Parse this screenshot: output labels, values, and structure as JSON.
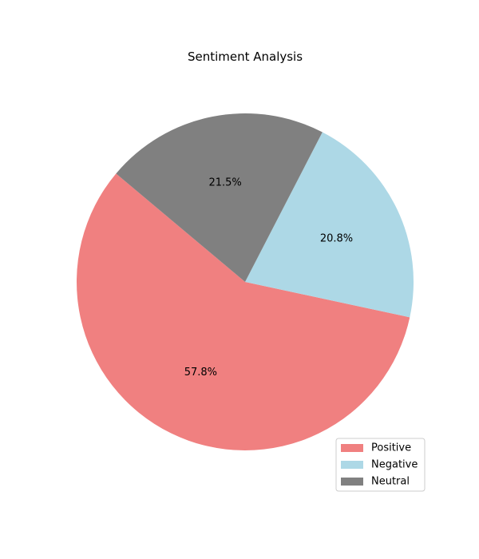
{
  "chart_data": {
    "type": "pie",
    "title": "Sentiment Analysis",
    "categories": [
      "Positive",
      "Negative",
      "Neutral"
    ],
    "values": [
      57.8,
      20.8,
      21.5
    ],
    "value_labels": [
      "57.8%",
      "20.8%",
      "21.5%"
    ],
    "colors": [
      "#f08080",
      "#add8e6",
      "#808080"
    ],
    "start_angle_deg": 140,
    "direction": "counterclockwise",
    "legend": {
      "position": "lower-right",
      "entries": [
        "Positive",
        "Negative",
        "Neutral"
      ]
    }
  }
}
